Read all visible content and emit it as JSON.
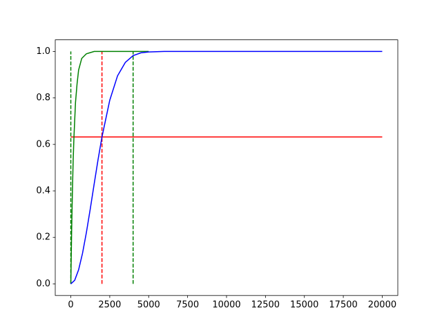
{
  "chart_data": {
    "type": "line",
    "xlim": [
      -1000,
      21000
    ],
    "ylim": [
      -0.05,
      1.05
    ],
    "xticks": [
      0,
      2500,
      5000,
      7500,
      10000,
      12500,
      15000,
      17500,
      20000
    ],
    "yticks": [
      {
        "value": 0,
        "label": "0.0"
      },
      0.2,
      0.4,
      0.6,
      0.8,
      {
        "value": 1,
        "label": "1.0"
      }
    ],
    "series": [
      {
        "color": "#ff0000",
        "dashed": false,
        "x": [
          0,
          20000
        ],
        "values": [
          0.632,
          0.632
        ]
      },
      {
        "color": "#ff0000",
        "dashed": true,
        "x": [
          2000,
          2000
        ],
        "values": [
          0,
          1
        ]
      },
      {
        "color": "#008000",
        "dashed": true,
        "x": [
          0,
          0
        ],
        "values": [
          0,
          1
        ]
      },
      {
        "color": "#008000",
        "dashed": true,
        "x": [
          4000,
          4000
        ],
        "values": [
          0,
          1
        ]
      },
      {
        "color": "#008000",
        "dashed": false,
        "x": [
          0,
          50,
          100,
          150,
          200,
          300,
          400,
          500,
          700,
          1000,
          1500,
          5000
        ],
        "values": [
          0,
          0.22,
          0.39,
          0.53,
          0.63,
          0.78,
          0.86,
          0.92,
          0.97,
          0.99,
          1,
          1
        ]
      },
      {
        "color": "#0000ff",
        "dashed": false,
        "x": [
          0,
          250,
          500,
          750,
          1000,
          1250,
          1500,
          1750,
          2000,
          2500,
          3000,
          3500,
          4000,
          4500,
          5000,
          6000,
          20000
        ],
        "values": [
          0,
          0.0155,
          0.0606,
          0.131,
          0.221,
          0.323,
          0.43,
          0.535,
          0.632,
          0.79,
          0.895,
          0.953,
          0.982,
          0.994,
          0.998,
          1,
          1
        ]
      }
    ]
  }
}
